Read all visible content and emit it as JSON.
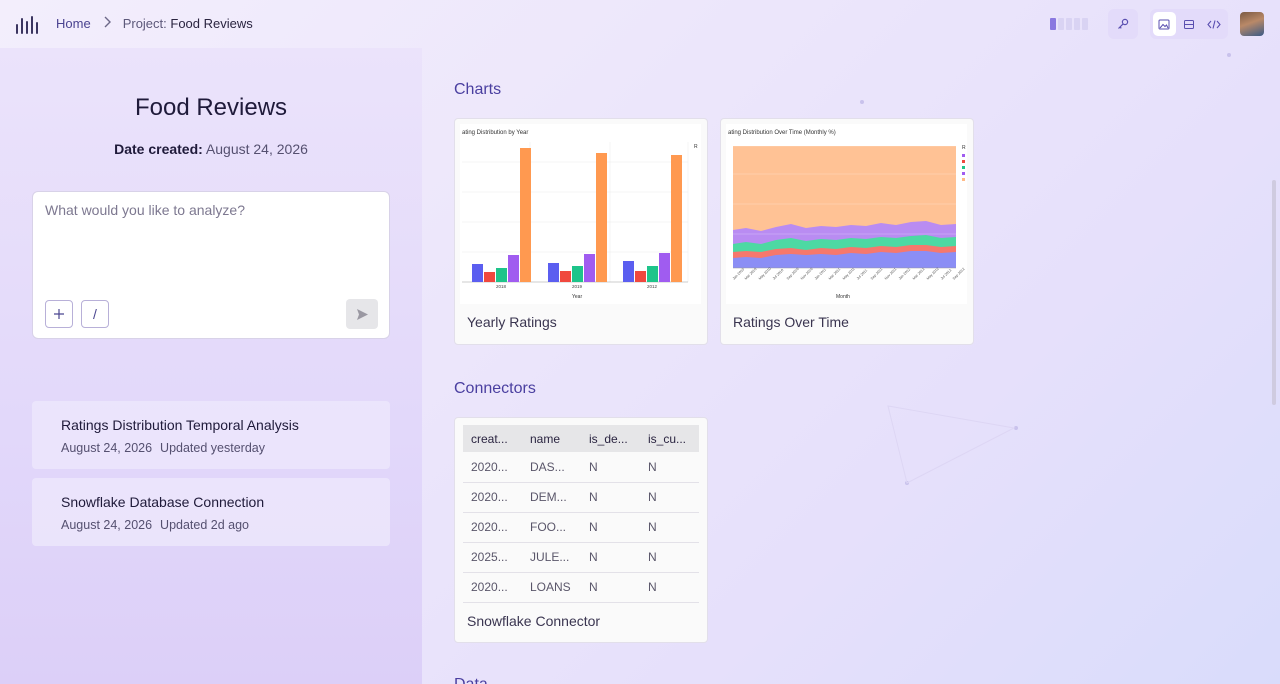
{
  "breadcrumb": {
    "home": "Home",
    "project_prefix": "Project:",
    "project_name": "Food Reviews"
  },
  "project": {
    "title": "Food Reviews",
    "date_label": "Date created:",
    "date_value": "August 24, 2026"
  },
  "prompt": {
    "placeholder": "What would you like to analyze?",
    "add_icon": "plus-icon",
    "slash_label": "/",
    "send_icon": "send-icon"
  },
  "threads": [
    {
      "title": "Ratings Distribution Temporal Analysis",
      "date": "August 24, 2026",
      "updated": "Updated yesterday"
    },
    {
      "title": "Snowflake Database Connection",
      "date": "August 24, 2026",
      "updated": "Updated 2d ago"
    }
  ],
  "sections": {
    "charts": "Charts",
    "connectors": "Connectors",
    "data": "Data"
  },
  "charts": [
    {
      "label": "Yearly Ratings",
      "thumb_title": "ating Distribution by Year",
      "xlabel": "Year",
      "categories": [
        "2018",
        "2019",
        "2012"
      ],
      "legend_title": "R"
    },
    {
      "label": "Ratings Over Time",
      "thumb_title": "ating Distribution Over Time (Monthly %)",
      "xlabel": "Month",
      "legend_title": "R"
    }
  ],
  "connector": {
    "label": "Snowflake Connector",
    "columns": [
      "creat...",
      "name",
      "is_de...",
      "is_cu..."
    ],
    "rows": [
      [
        "2020...",
        "DAS...",
        "N",
        "N"
      ],
      [
        "2020...",
        "DEM...",
        "N",
        "N"
      ],
      [
        "2020...",
        "FOO...",
        "N",
        "N"
      ],
      [
        "2025...",
        "JULE...",
        "N",
        "N"
      ],
      [
        "2020...",
        "LOANS",
        "N",
        "N"
      ]
    ]
  },
  "colors": {
    "accent": "#4a3fa0",
    "series": [
      "#5b5ef0",
      "#f0483e",
      "#1ec48a",
      "#a05cf0",
      "#ff9950"
    ]
  }
}
